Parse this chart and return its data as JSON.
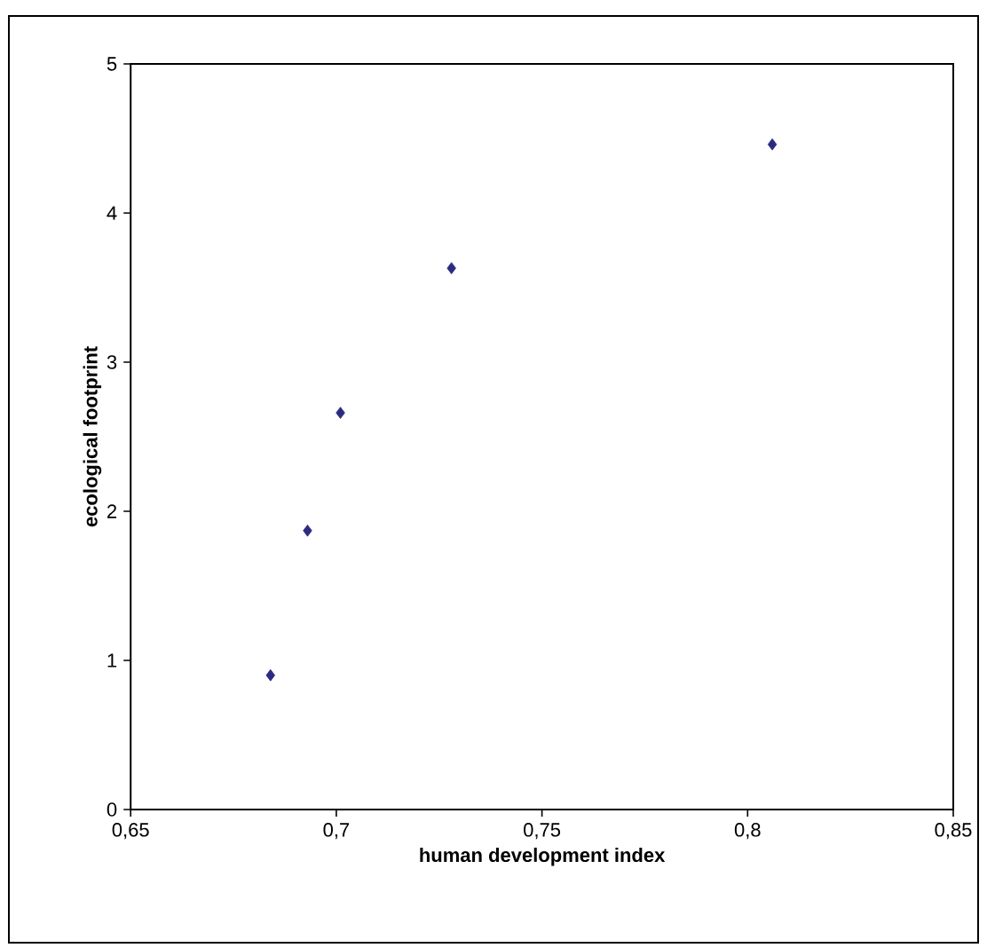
{
  "chart_data": {
    "type": "scatter",
    "xlabel": "human development index",
    "ylabel": "ecological footprint",
    "x": [
      0.684,
      0.693,
      0.701,
      0.728,
      0.806
    ],
    "series": [
      {
        "color": "#2b2b80",
        "values": [
          0.9,
          1.87,
          2.66,
          3.63,
          4.46
        ]
      }
    ],
    "marker": "diamond",
    "xlim": [
      0.65,
      0.85
    ],
    "xticks": [
      {
        "value": 0.65,
        "label": "0,65"
      },
      {
        "value": 0.7,
        "label": "0,7"
      },
      {
        "value": 0.75,
        "label": "0,75"
      },
      {
        "value": 0.8,
        "label": "0,8"
      },
      {
        "value": 0.85,
        "label": "0,85"
      }
    ],
    "ylim": [
      0,
      5
    ],
    "yticks": [
      0,
      1,
      2,
      3,
      4,
      5
    ]
  }
}
